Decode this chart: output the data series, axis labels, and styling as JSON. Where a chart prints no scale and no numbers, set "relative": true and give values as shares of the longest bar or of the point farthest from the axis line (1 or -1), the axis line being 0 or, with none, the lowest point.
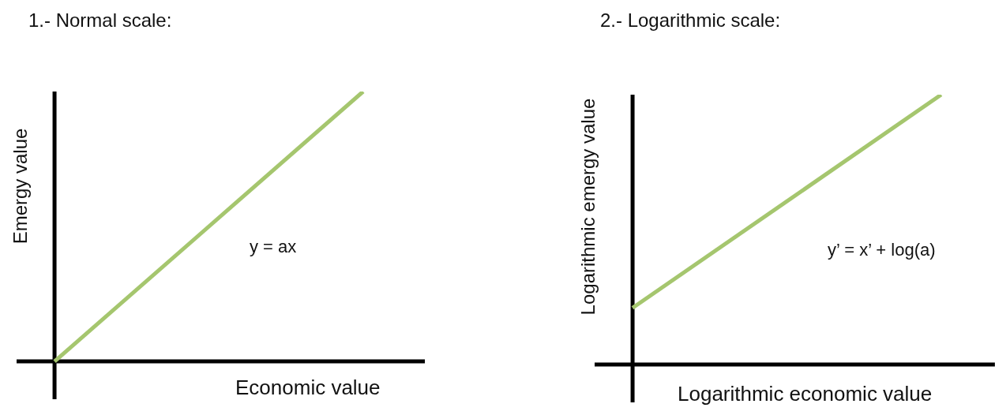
{
  "chart_data": [
    {
      "type": "line",
      "title": "1.- Normal scale:",
      "xlabel": "Economic value",
      "ylabel": "Emergy value",
      "categories": [
        null,
        null
      ],
      "relative": true,
      "marker": "none",
      "annotations": [
        "y = ax"
      ],
      "series": [
        {
          "color": "#a5c66e",
          "values": [
            0,
            1
          ]
        }
      ]
    },
    {
      "type": "line",
      "title": "2.- Logarithmic scale:",
      "xlabel": "Logarithmic economic value",
      "ylabel": "Logarithmic emergy value",
      "categories": [
        null,
        null
      ],
      "relative": true,
      "marker": "none",
      "annotations": [
        "y’ = x’ + log(a)"
      ],
      "series": [
        {
          "color": "#a5c66e",
          "values": [
            0.21,
            1
          ]
        }
      ]
    }
  ]
}
